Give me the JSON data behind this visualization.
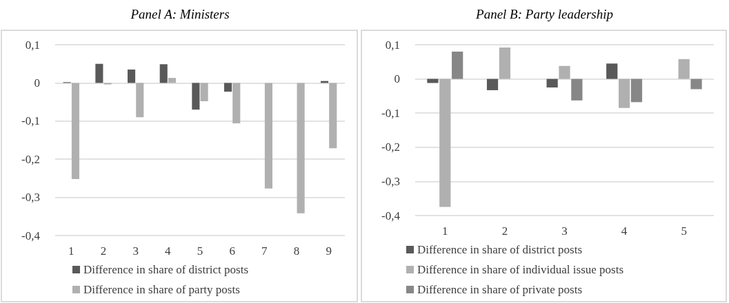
{
  "chart_data": [
    {
      "type": "bar",
      "title": "Panel A: Ministers",
      "categories": [
        "1",
        "2",
        "3",
        "4",
        "5",
        "6",
        "7",
        "8",
        "9"
      ],
      "series": [
        {
          "name": "Difference in share of district posts",
          "color": "#595959",
          "values": [
            0.002,
            0.05,
            0.035,
            0.049,
            -0.07,
            -0.023,
            0,
            0,
            0.005
          ]
        },
        {
          "name": "Difference in share of party posts",
          "color": "#b0b0b0",
          "values": [
            -0.252,
            -0.004,
            -0.09,
            0.013,
            -0.048,
            -0.106,
            -0.277,
            -0.342,
            -0.171
          ]
        }
      ],
      "ylim": [
        -0.4,
        0.1
      ],
      "yticks": [
        {
          "value": -0.4,
          "label": "-0,4"
        },
        {
          "value": -0.3,
          "label": "-0,3"
        },
        {
          "value": -0.2,
          "label": "-0,2"
        },
        {
          "value": -0.1,
          "label": "-0,1"
        },
        0,
        {
          "value": 0.1,
          "label": "0,1"
        }
      ],
      "grid": "y",
      "legend": "bottom"
    },
    {
      "type": "bar",
      "title": "Panel B: Party leadership",
      "categories": [
        "1",
        "2",
        "3",
        "4",
        "5"
      ],
      "series": [
        {
          "name": "Difference in share of district posts",
          "color": "#595959",
          "values": [
            -0.012,
            -0.033,
            -0.025,
            0.045,
            0
          ]
        },
        {
          "name": "Difference in share of individual issue posts",
          "color": "#b0b0b0",
          "values": [
            -0.375,
            0.092,
            0.038,
            -0.085,
            0.058
          ]
        },
        {
          "name": "Difference in share of private posts",
          "color": "#878787",
          "values": [
            0.08,
            0,
            -0.063,
            -0.068,
            -0.03
          ]
        }
      ],
      "ylim": [
        -0.4,
        0.1
      ],
      "yticks": [
        {
          "value": -0.4,
          "label": "-0,4"
        },
        {
          "value": -0.3,
          "label": "-0,3"
        },
        {
          "value": -0.2,
          "label": "-0,2"
        },
        {
          "value": -0.1,
          "label": "-0,1"
        },
        0,
        {
          "value": 0.1,
          "label": "0,1"
        }
      ],
      "grid": "y",
      "legend": "bottom"
    }
  ]
}
